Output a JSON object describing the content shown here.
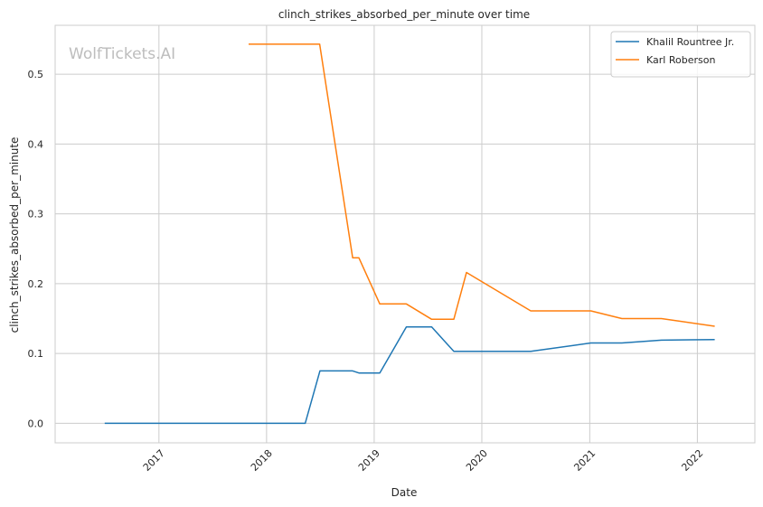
{
  "chart_data": {
    "type": "line",
    "title": "clinch_strikes_absorbed_per_minute over time",
    "xlabel": "Date",
    "ylabel": "clinch_strikes_absorbed_per_minute",
    "watermark": "WolfTickets.AI",
    "x_type": "date",
    "xlim": [
      "2016-01-15",
      "2022-07-15"
    ],
    "ylim": [
      -0.028,
      0.57
    ],
    "x_ticks": [
      {
        "date": "2017-01-01",
        "label": "2017"
      },
      {
        "date": "2018-01-01",
        "label": "2018"
      },
      {
        "date": "2019-01-01",
        "label": "2019"
      },
      {
        "date": "2020-01-01",
        "label": "2020"
      },
      {
        "date": "2021-01-01",
        "label": "2021"
      },
      {
        "date": "2022-01-01",
        "label": "2022"
      }
    ],
    "y_ticks": [
      {
        "value": 0.0,
        "label": "0.0"
      },
      {
        "value": 0.1,
        "label": "0.1"
      },
      {
        "value": 0.2,
        "label": "0.2"
      },
      {
        "value": 0.3,
        "label": "0.3"
      },
      {
        "value": 0.4,
        "label": "0.4"
      },
      {
        "value": 0.5,
        "label": "0.5"
      }
    ],
    "grid": true,
    "legend_position": "top-right",
    "series": [
      {
        "name": "Khalil Rountree Jr.",
        "color": "#1f77b4",
        "points": [
          [
            "2016-07-01",
            0.0
          ],
          [
            "2018-05-12",
            0.0
          ],
          [
            "2018-07-01",
            0.075
          ],
          [
            "2018-10-20",
            0.075
          ],
          [
            "2018-11-10",
            0.072
          ],
          [
            "2019-01-20",
            0.072
          ],
          [
            "2019-04-20",
            0.138
          ],
          [
            "2019-07-15",
            0.138
          ],
          [
            "2019-09-28",
            0.103
          ],
          [
            "2020-06-15",
            0.103
          ],
          [
            "2021-01-05",
            0.115
          ],
          [
            "2021-04-20",
            0.115
          ],
          [
            "2021-09-01",
            0.119
          ],
          [
            "2022-03-01",
            0.12
          ]
        ]
      },
      {
        "name": "Karl Roberson",
        "color": "#ff7f0e",
        "points": [
          [
            "2017-11-01",
            0.543
          ],
          [
            "2018-06-30",
            0.543
          ],
          [
            "2018-10-20",
            0.237
          ],
          [
            "2018-11-10",
            0.237
          ],
          [
            "2019-01-20",
            0.171
          ],
          [
            "2019-04-20",
            0.171
          ],
          [
            "2019-07-15",
            0.149
          ],
          [
            "2019-09-28",
            0.149
          ],
          [
            "2019-11-10",
            0.216
          ],
          [
            "2020-06-15",
            0.161
          ],
          [
            "2021-01-05",
            0.161
          ],
          [
            "2021-04-20",
            0.15
          ],
          [
            "2021-09-01",
            0.15
          ],
          [
            "2022-03-01",
            0.139
          ]
        ]
      }
    ]
  }
}
